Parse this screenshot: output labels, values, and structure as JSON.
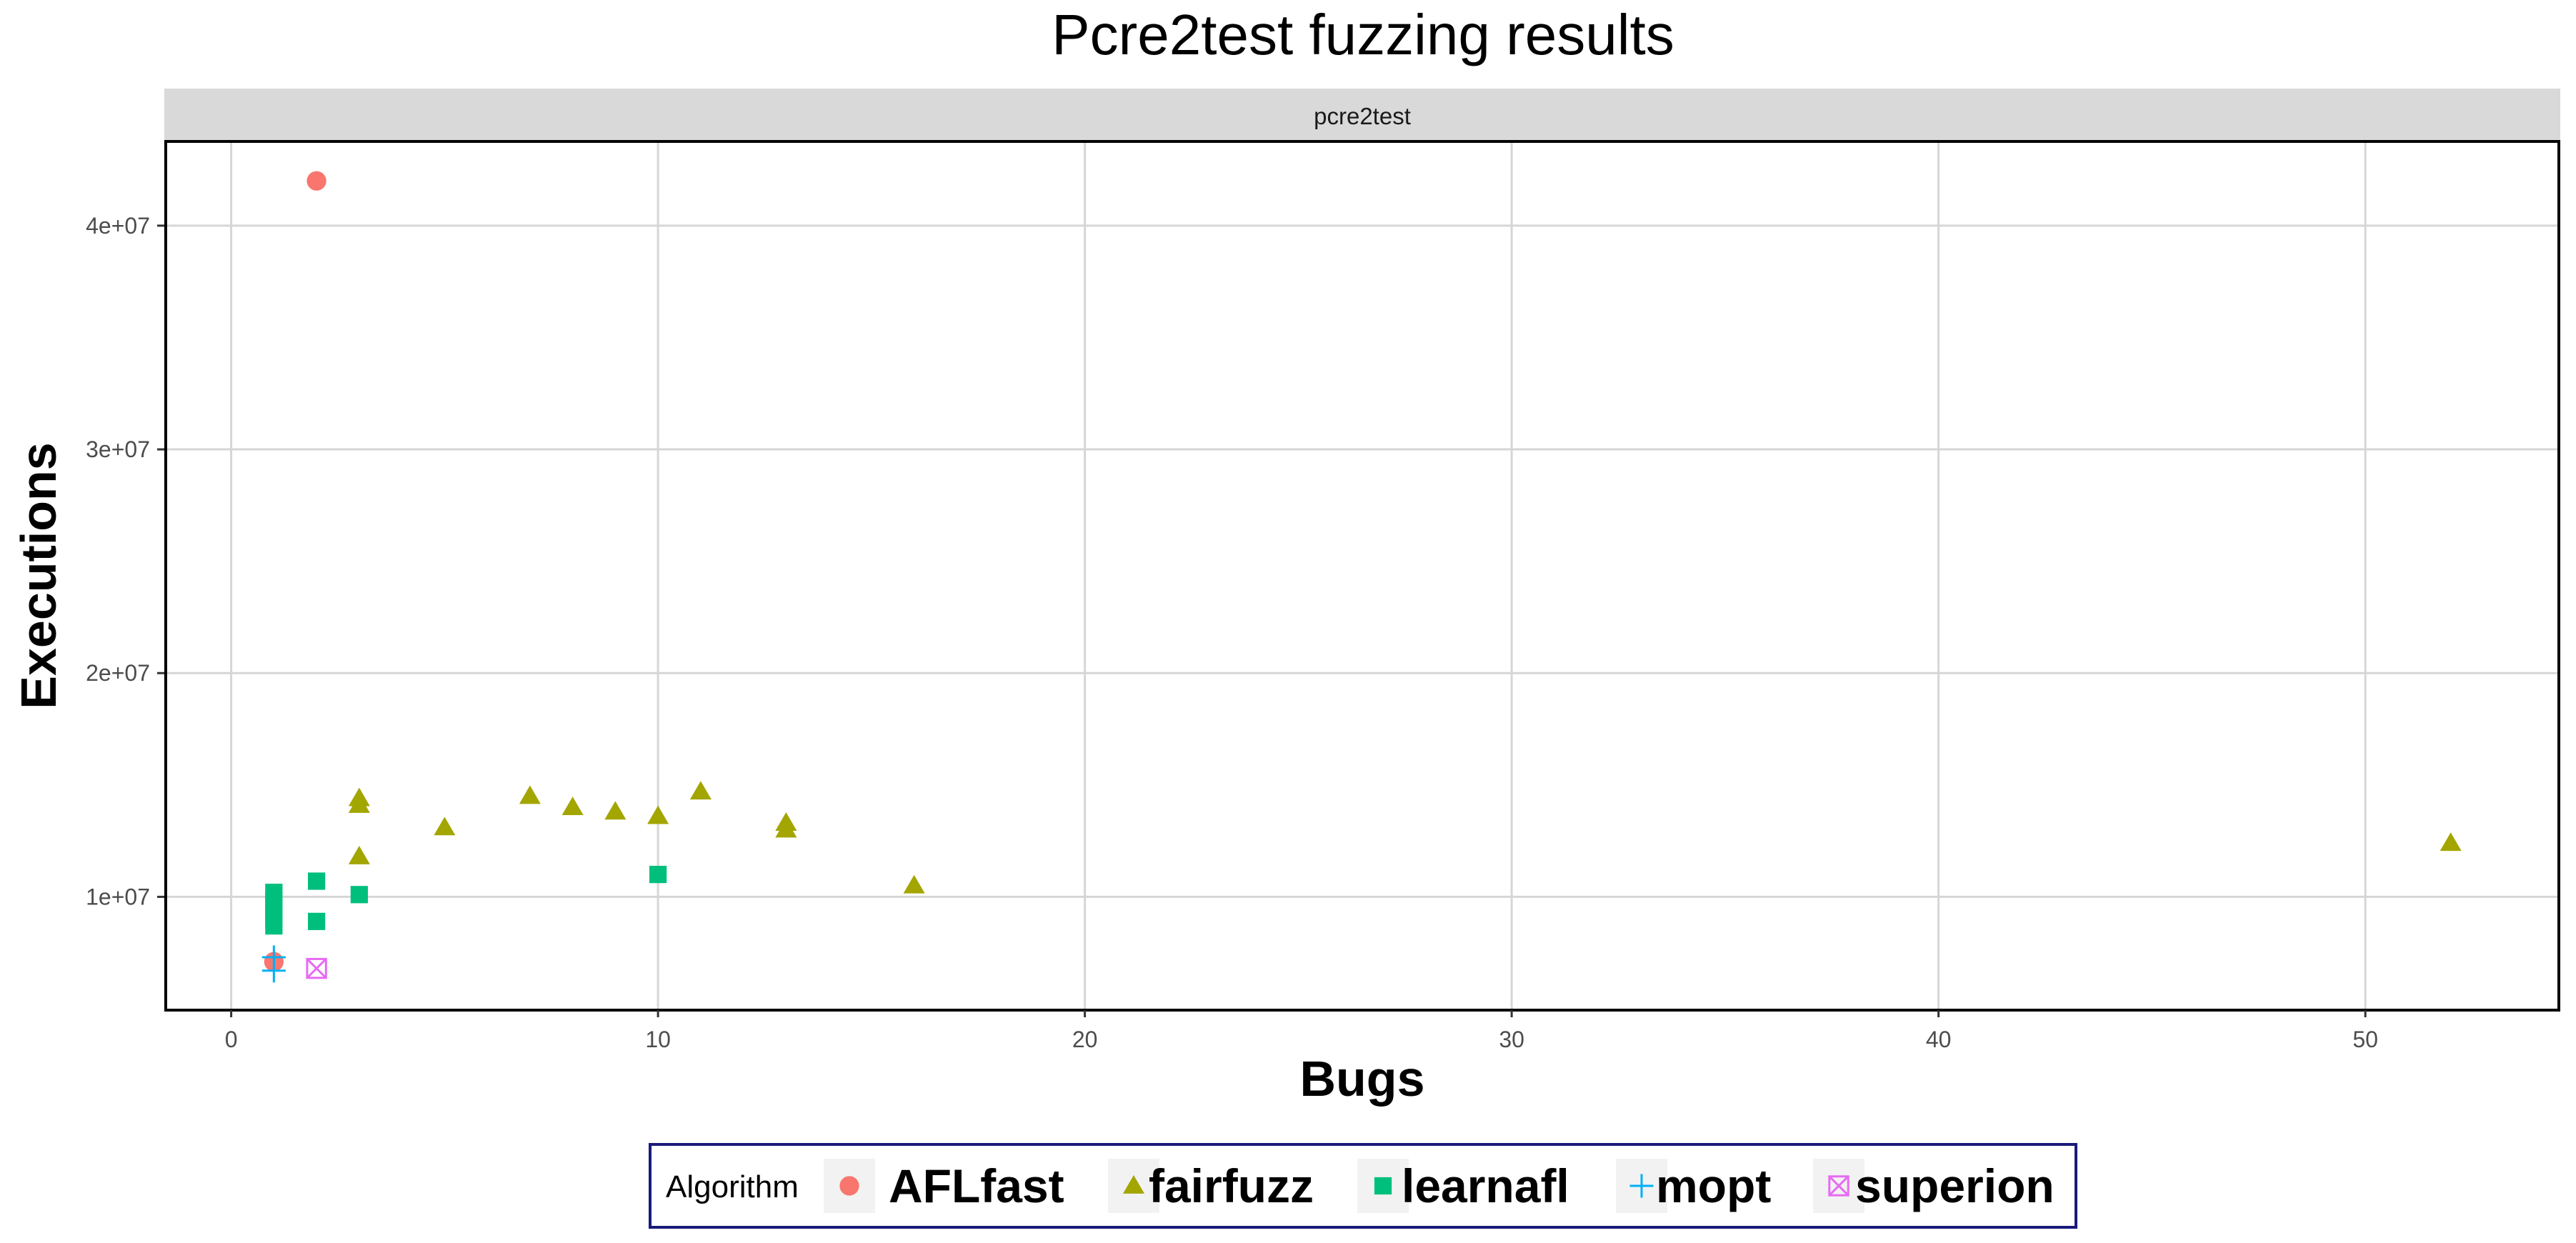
{
  "chart_data": {
    "type": "scatter",
    "title": "Pcre2test fuzzing results",
    "facet_label": "pcre2test",
    "xlabel": "Bugs",
    "ylabel": "Executions",
    "xlim": [
      -1.5,
      54.5
    ],
    "ylim": [
      5000000,
      43700000
    ],
    "x_ticks": [
      0,
      10,
      20,
      30,
      40,
      50
    ],
    "x_tick_labels": [
      "0",
      "10",
      "20",
      "30",
      "40",
      "50"
    ],
    "y_ticks": [
      10000000,
      20000000,
      30000000,
      40000000
    ],
    "y_tick_labels": [
      "1e+07",
      "2e+07",
      "3e+07",
      "4e+07"
    ],
    "grid": true,
    "legend": {
      "title": "Algorithm",
      "position": "bottom"
    },
    "series": [
      {
        "name": "AFLfast",
        "shape": "circle",
        "color": "#F8766D",
        "points": [
          [
            2,
            42000000
          ],
          [
            1,
            7100000
          ]
        ]
      },
      {
        "name": "fairfuzz",
        "shape": "triangle",
        "color": "#A3A500",
        "points": [
          [
            3,
            14400000
          ],
          [
            3,
            14100000
          ],
          [
            3,
            11800000
          ],
          [
            5,
            13100000
          ],
          [
            7,
            14500000
          ],
          [
            8,
            14000000
          ],
          [
            9,
            13800000
          ],
          [
            10,
            13600000
          ],
          [
            11,
            14700000
          ],
          [
            13,
            13300000
          ],
          [
            13,
            13000000
          ],
          [
            16,
            10500000
          ],
          [
            52,
            12400000
          ]
        ]
      },
      {
        "name": "learnafl",
        "shape": "square",
        "color": "#00BF7D",
        "points": [
          [
            1,
            10200000
          ],
          [
            1,
            9900000
          ],
          [
            1,
            9600000
          ],
          [
            1,
            9300000
          ],
          [
            1,
            9000000
          ],
          [
            1,
            8700000
          ],
          [
            2,
            10700000
          ],
          [
            2,
            8900000
          ],
          [
            3,
            10100000
          ],
          [
            10,
            11000000
          ]
        ]
      },
      {
        "name": "mopt",
        "shape": "plus",
        "color": "#00B0F6",
        "points": [
          [
            1,
            7300000
          ],
          [
            1,
            6700000
          ]
        ]
      },
      {
        "name": "superion",
        "shape": "boxcross",
        "color": "#E76BF3",
        "points": [
          [
            2,
            6800000
          ]
        ]
      }
    ]
  }
}
